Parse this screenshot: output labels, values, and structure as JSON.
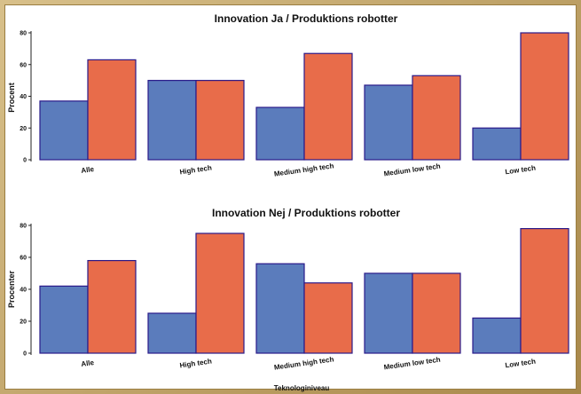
{
  "colors": {
    "series_a": "#5b7cbc",
    "series_b": "#e86c4a",
    "border": "#2a1a8a",
    "frame": "#b89b5a"
  },
  "chart_data": [
    {
      "type": "bar",
      "title": "Innovation Ja / Produktions robotter",
      "ylabel": "Procent",
      "xlabel": "",
      "ylim": [
        0,
        80
      ],
      "yticks": [
        0,
        20,
        40,
        60,
        80
      ],
      "categories": [
        "Alle",
        "High tech",
        "Medium high tech",
        "Medium low tech",
        "Low tech"
      ],
      "series": [
        {
          "values": [
            37,
            50,
            33,
            47,
            20
          ]
        },
        {
          "values": [
            63,
            50,
            67,
            53,
            80
          ]
        }
      ]
    },
    {
      "type": "bar",
      "title": "Innovation Nej / Produktions robotter",
      "ylabel": "Procenter",
      "xlabel": "Teknologiniveau",
      "ylim": [
        0,
        80
      ],
      "yticks": [
        0,
        20,
        40,
        60,
        80
      ],
      "categories": [
        "Alle",
        "High tech",
        "Medium high tech",
        "Medium low tech",
        "Low tech"
      ],
      "series": [
        {
          "values": [
            42,
            25,
            56,
            50,
            22
          ]
        },
        {
          "values": [
            58,
            75,
            44,
            50,
            78
          ]
        }
      ]
    }
  ]
}
